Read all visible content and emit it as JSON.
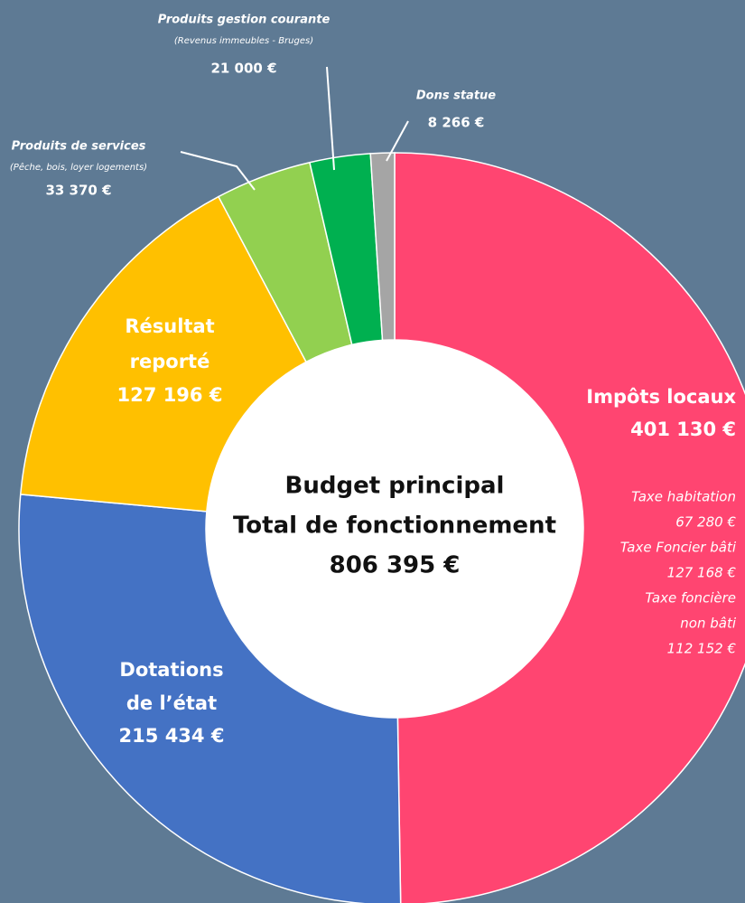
{
  "chart_data": {
    "type": "donut",
    "categories": [
      "Impôts locaux",
      "Dotations de l’état",
      "Résultat reporté",
      "Produits de services",
      "Produits gestion courante",
      "Dons statue"
    ],
    "values": [
      401130,
      215434,
      127196,
      33370,
      21000,
      8266
    ],
    "value_labels": [
      "401 130 €",
      "215 434 €",
      "127 196 €",
      "33 370 €",
      "21 000 €",
      "8 266 €"
    ],
    "colors": [
      "#ff4571",
      "#4472c4",
      "#ffc000",
      "#92d050",
      "#00b050",
      "#a5a5a5"
    ],
    "subtitles": [
      null,
      null,
      null,
      "(Pêche, bois, loyer logements)",
      "(Revenus immeubles - Bruges)",
      null
    ],
    "details": [
      "Taxe habitation",
      "67 280 €",
      "Taxe Foncier bâti",
      "127 168 €",
      "Taxe foncière",
      "non bâti",
      "112 152 €"
    ],
    "center_lines": [
      "Budget principal",
      "Total de fonctionnement",
      "806 395 €"
    ]
  }
}
